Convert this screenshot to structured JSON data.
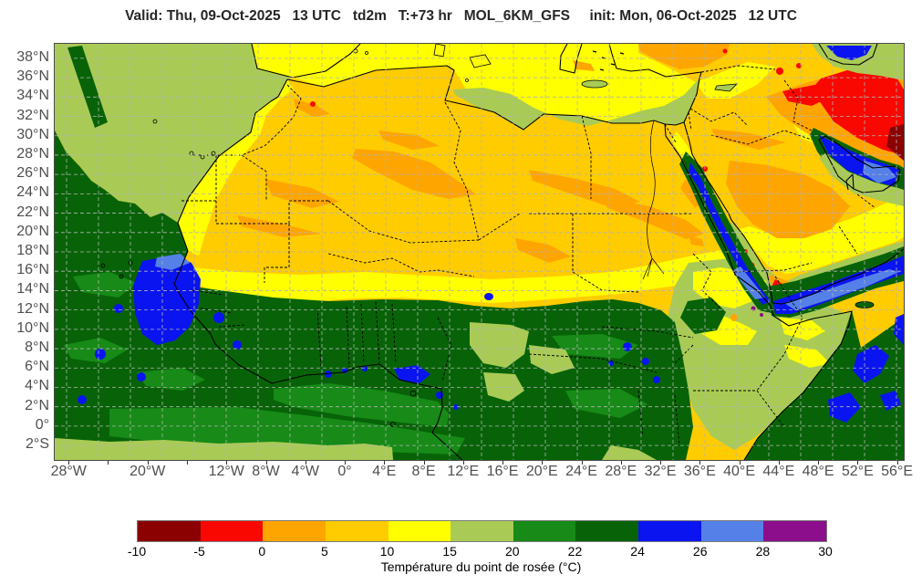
{
  "title": "Valid: Thu, 09-Oct-2025   13 UTC   td2m   T:+73 hr   MOL_6KM_GFS     init: Mon, 06-Oct-2025   12 UTC",
  "map": {
    "lat_labels": [
      {
        "text": "38°N",
        "lat": 38
      },
      {
        "text": "36°N",
        "lat": 36
      },
      {
        "text": "34°N",
        "lat": 34
      },
      {
        "text": "32°N",
        "lat": 32
      },
      {
        "text": "30°N",
        "lat": 30
      },
      {
        "text": "28°N",
        "lat": 28
      },
      {
        "text": "26°N",
        "lat": 26
      },
      {
        "text": "24°N",
        "lat": 24
      },
      {
        "text": "22°N",
        "lat": 22
      },
      {
        "text": "20°N",
        "lat": 20
      },
      {
        "text": "18°N",
        "lat": 18
      },
      {
        "text": "16°N",
        "lat": 16
      },
      {
        "text": "14°N",
        "lat": 14
      },
      {
        "text": "12°N",
        "lat": 12
      },
      {
        "text": "10°N",
        "lat": 10
      },
      {
        "text": "8°N",
        "lat": 8
      },
      {
        "text": "6°N",
        "lat": 6
      },
      {
        "text": "4°N",
        "lat": 4
      },
      {
        "text": "2°N",
        "lat": 2
      },
      {
        "text": "0°",
        "lat": 0
      },
      {
        "text": "2°S",
        "lat": -2
      }
    ],
    "lon_labels": [
      {
        "text": "28°W",
        "lon": -28
      },
      {
        "text": "20°W",
        "lon": -20
      },
      {
        "text": "12°W",
        "lon": -12
      },
      {
        "text": "8°W",
        "lon": -8
      },
      {
        "text": "4°W",
        "lon": -4
      },
      {
        "text": "0°",
        "lon": 0
      },
      {
        "text": "4°E",
        "lon": 4
      },
      {
        "text": "8°E",
        "lon": 8
      },
      {
        "text": "12°E",
        "lon": 12
      },
      {
        "text": "16°E",
        "lon": 16
      },
      {
        "text": "20°E",
        "lon": 20
      },
      {
        "text": "24°E",
        "lon": 24
      },
      {
        "text": "28°E",
        "lon": 28
      },
      {
        "text": "32°E",
        "lon": 32
      },
      {
        "text": "36°E",
        "lon": 36
      },
      {
        "text": "40°E",
        "lon": 40
      },
      {
        "text": "44°E",
        "lon": 44
      },
      {
        "text": "48°E",
        "lon": 48
      },
      {
        "text": "52°E",
        "lon": 52
      },
      {
        "text": "56°E",
        "lon": 56
      }
    ],
    "lon_ticks": [
      -28,
      -24,
      -20,
      -16,
      -12,
      -8,
      -4,
      0,
      4,
      8,
      12,
      16,
      20,
      24,
      28,
      32,
      36,
      40,
      44,
      48,
      52,
      56
    ]
  },
  "palette": {
    "m10_m5": "#8B0000",
    "m5_0": "#F80800",
    "p0_5": "#FFA500",
    "p5_10": "#FFCC00",
    "p10_15": "#FFFF00",
    "p15_20": "#A9CB55",
    "p20_22": "#178A17",
    "p22_24": "#086308",
    "p24_26": "#0A14F0",
    "p26_28": "#5580E8",
    "p28_30": "#8C0E8C",
    "coastline": "#000000",
    "border": "#000000",
    "gridline": "#b3b3b3",
    "axis_text": "#4f4f4f"
  },
  "colorbar": {
    "ticks": [
      "-10",
      "-5",
      "0",
      "5",
      "10",
      "15",
      "20",
      "22",
      "24",
      "26",
      "28",
      "30"
    ],
    "segment_keys": [
      "m10_m5",
      "m5_0",
      "p0_5",
      "p5_10",
      "p10_15",
      "p15_20",
      "p20_22",
      "p22_24",
      "p24_26",
      "p26_28",
      "p28_30"
    ],
    "caption": "Température du point de rosée (°C)"
  },
  "chart_data": {
    "type": "heatmap",
    "variable": "td2m",
    "unit": "°C",
    "model": "MOL_6KM_GFS",
    "valid_time": "Thu, 09-Oct-2025 13 UTC",
    "init_time": "Mon, 06-Oct-2025 12 UTC",
    "lead_time": "T:+73 hr",
    "extent": {
      "lon_min": "28°W",
      "lon_max": "56°E",
      "lat_min": "2°S",
      "lat_max": "38°N"
    },
    "bins": [
      -10,
      -5,
      0,
      5,
      10,
      15,
      20,
      22,
      24,
      26,
      28,
      30
    ],
    "bin_colors": [
      "#8B0000",
      "#F80800",
      "#FFA500",
      "#FFCC00",
      "#FFFF00",
      "#A9CB55",
      "#178A17",
      "#086308",
      "#0A14F0",
      "#5580E8",
      "#8C0E8C"
    ],
    "regions_summary": [
      {
        "area": "Sahara / interior Arabia",
        "dewpoint_range": "0 to 15 °C (gold with orange streaks)"
      },
      {
        "area": "Iran / Iraq (NE corner)",
        "dewpoint_range": "-10 to 0 °C (red, dark-red specks)"
      },
      {
        "area": "Mediterranean Sea",
        "dewpoint_range": "10 to 20 °C (yellow with olive coastal band)"
      },
      {
        "area": "NE Atlantic",
        "dewpoint_range": "15 to 20 °C"
      },
      {
        "area": "Tropical Atlantic and West Africa south of ~13°N",
        "dewpoint_range": "20 to 24 °C"
      },
      {
        "area": "Senegal offshore patch",
        "dewpoint_range": "24 to 28 °C (blue/cornflower)"
      },
      {
        "area": "Red Sea / Gulf of Aden / Persian Gulf",
        "dewpoint_range": "24 to 30 °C"
      },
      {
        "area": "Ethiopia / Somalia",
        "dewpoint_range": "10 to 20 °C mixed"
      }
    ]
  }
}
